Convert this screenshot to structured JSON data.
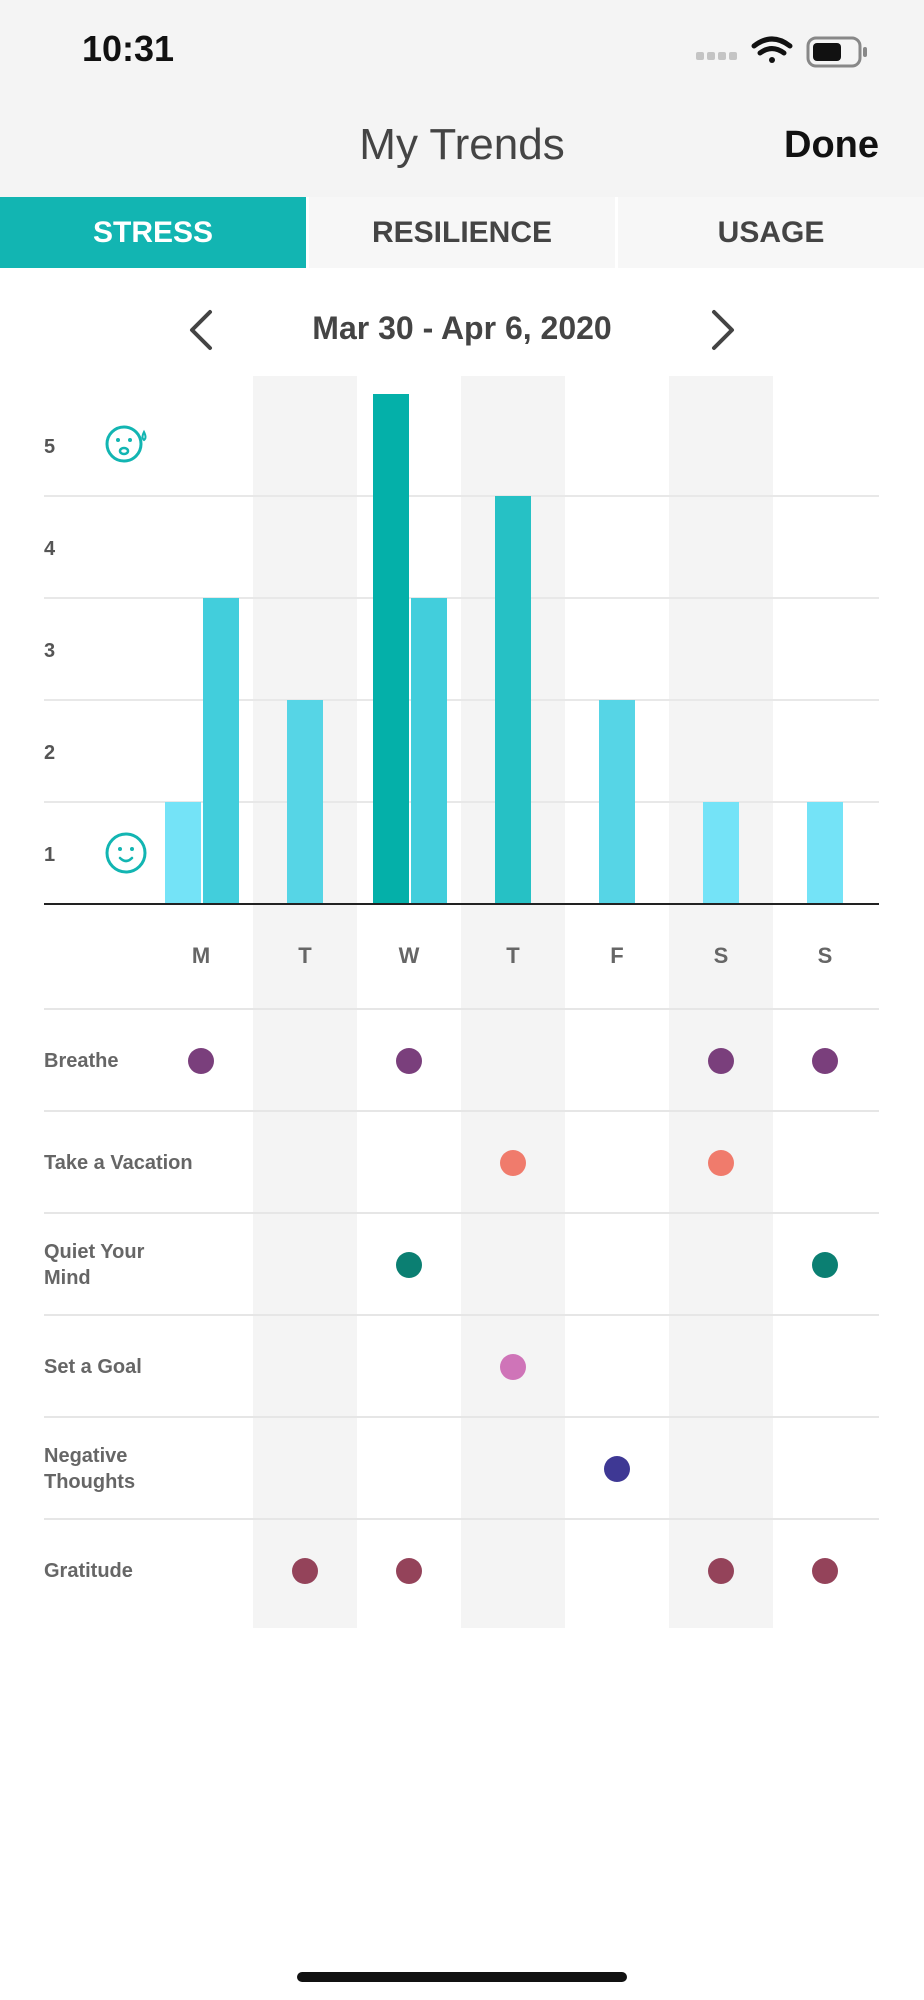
{
  "status_bar": {
    "time": "10:31"
  },
  "header": {
    "title": "My Trends",
    "done_label": "Done"
  },
  "tabs": [
    {
      "label": "STRESS",
      "active": true
    },
    {
      "label": "RESILIENCE",
      "active": false
    },
    {
      "label": "USAGE",
      "active": false
    }
  ],
  "date_range": "Mar 30 - Apr 6, 2020",
  "colors": {
    "accent": "#12b5b2",
    "tab_bg": "#f7f7f7",
    "column_shade": "#f4f4f4"
  },
  "icons": {
    "prev": "chevron-left-icon",
    "next": "chevron-right-icon",
    "stressed_face": "sweating-face-icon",
    "calm_face": "smiling-face-icon"
  },
  "chart_data": {
    "type": "bar",
    "categories": [
      "M",
      "T",
      "W",
      "T",
      "F",
      "S",
      "S"
    ],
    "y_ticks": [
      "1",
      "2",
      "3",
      "4",
      "5"
    ],
    "ylim": [
      0,
      5
    ],
    "bars": [
      {
        "day": 0,
        "value": 1,
        "color": "#74e3f7"
      },
      {
        "day": 0,
        "value": 3,
        "color": "#42cedc"
      },
      {
        "day": 1,
        "value": 2,
        "color": "#56d5e6"
      },
      {
        "day": 2,
        "value": 5,
        "color": "#04b0a9"
      },
      {
        "day": 2,
        "value": 3,
        "color": "#42cedc"
      },
      {
        "day": 3,
        "value": 4,
        "color": "#26c1c5"
      },
      {
        "day": 4,
        "value": 2,
        "color": "#56d5e6"
      },
      {
        "day": 5,
        "value": 1,
        "color": "#74e3f7"
      },
      {
        "day": 6,
        "value": 1,
        "color": "#74e3f7"
      }
    ]
  },
  "activities": [
    {
      "label": "Breathe",
      "color": "#7a3f7c",
      "days": [
        0,
        2,
        5,
        6
      ]
    },
    {
      "label": "Take a Vacation",
      "color": "#f07b6c",
      "days": [
        3,
        5
      ]
    },
    {
      "label": "Quiet Your Mind",
      "color": "#0b7f72",
      "days": [
        2,
        6
      ]
    },
    {
      "label": "Set a Goal",
      "color": "#cf74b8",
      "days": [
        3
      ]
    },
    {
      "label": "Negative Thoughts",
      "color": "#3e3894",
      "days": [
        4
      ]
    },
    {
      "label": "Gratitude",
      "color": "#94435a",
      "days": [
        1,
        2,
        5,
        6
      ]
    }
  ]
}
